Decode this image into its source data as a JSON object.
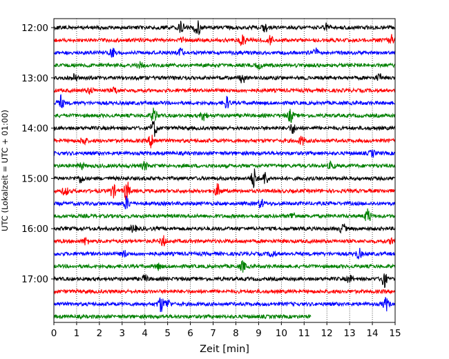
{
  "chart_data": {
    "type": "line",
    "subtype": "helicorder-seismogram",
    "title": "",
    "xlabel": "Zeit  [min]",
    "ylabel": "UTC (Lokalzeit = UTC + 01:00)",
    "xlim": [
      0,
      15
    ],
    "x_ticks": [
      0,
      1,
      2,
      3,
      4,
      5,
      6,
      7,
      8,
      9,
      10,
      11,
      12,
      13,
      14,
      15
    ],
    "x_grid": "vertical-dotted",
    "y_tick_labels": [
      "12:00",
      "13:00",
      "14:00",
      "15:00",
      "16:00",
      "17:00"
    ],
    "trace_colors": [
      "#000000",
      "#ff0000",
      "#0000ff",
      "#008000"
    ],
    "traces": [
      {
        "start": "12:00",
        "end_min": 15,
        "color": "#000000",
        "events": [
          {
            "t": 5.6,
            "amp": 8
          },
          {
            "t": 6.3,
            "amp": 12
          },
          {
            "t": 9.3,
            "amp": 6
          },
          {
            "t": 12.0,
            "amp": 6
          }
        ]
      },
      {
        "start": "12:15",
        "end_min": 15,
        "color": "#ff0000",
        "events": [
          {
            "t": 5.7,
            "amp": 4
          },
          {
            "t": 8.3,
            "amp": 10
          },
          {
            "t": 9.5,
            "amp": 6
          },
          {
            "t": 14.8,
            "amp": 8
          }
        ]
      },
      {
        "start": "12:30",
        "end_min": 15,
        "color": "#0000ff",
        "events": [
          {
            "t": 2.6,
            "amp": 7
          },
          {
            "t": 5.6,
            "amp": 5
          },
          {
            "t": 11.5,
            "amp": 6
          }
        ]
      },
      {
        "start": "12:45",
        "end_min": 15,
        "color": "#008000",
        "events": [
          {
            "t": 3.8,
            "amp": 4
          },
          {
            "t": 9.0,
            "amp": 4
          }
        ]
      },
      {
        "start": "13:00",
        "end_min": 15,
        "color": "#000000",
        "events": [
          {
            "t": 0.9,
            "amp": 5
          },
          {
            "t": 8.3,
            "amp": 8
          },
          {
            "t": 14.3,
            "amp": 5
          }
        ]
      },
      {
        "start": "13:15",
        "end_min": 15,
        "color": "#ff0000",
        "events": [
          {
            "t": 1.6,
            "amp": 4
          },
          {
            "t": 2.7,
            "amp": 4
          }
        ]
      },
      {
        "start": "13:30",
        "end_min": 15,
        "color": "#0000ff",
        "events": [
          {
            "t": 0.3,
            "amp": 10
          },
          {
            "t": 7.6,
            "amp": 8
          }
        ]
      },
      {
        "start": "13:45",
        "end_min": 15,
        "color": "#008000",
        "events": [
          {
            "t": 4.4,
            "amp": 10
          },
          {
            "t": 6.6,
            "amp": 7
          },
          {
            "t": 10.4,
            "amp": 9
          }
        ]
      },
      {
        "start": "14:00",
        "end_min": 15,
        "color": "#000000",
        "events": [
          {
            "t": 4.4,
            "amp": 12
          },
          {
            "t": 10.5,
            "amp": 7
          }
        ]
      },
      {
        "start": "14:15",
        "end_min": 15,
        "color": "#ff0000",
        "events": [
          {
            "t": 1.3,
            "amp": 6
          },
          {
            "t": 4.3,
            "amp": 10
          },
          {
            "t": 10.9,
            "amp": 6
          }
        ]
      },
      {
        "start": "14:30",
        "end_min": 15,
        "color": "#0000ff",
        "events": [
          {
            "t": 14.0,
            "amp": 4
          }
        ]
      },
      {
        "start": "14:45",
        "end_min": 15,
        "color": "#008000",
        "events": [
          {
            "t": 1.2,
            "amp": 4
          },
          {
            "t": 4.0,
            "amp": 5
          },
          {
            "t": 12.2,
            "amp": 5
          }
        ]
      },
      {
        "start": "15:00",
        "end_min": 15,
        "color": "#000000",
        "events": [
          {
            "t": 1.2,
            "amp": 6
          },
          {
            "t": 8.8,
            "amp": 14
          },
          {
            "t": 9.3,
            "amp": 9
          }
        ]
      },
      {
        "start": "15:15",
        "end_min": 15,
        "color": "#ff0000",
        "events": [
          {
            "t": 2.6,
            "amp": 9
          },
          {
            "t": 3.2,
            "amp": 14
          },
          {
            "t": 7.2,
            "amp": 9
          },
          {
            "t": 0.5,
            "amp": 6
          }
        ]
      },
      {
        "start": "15:30",
        "end_min": 15,
        "color": "#0000ff",
        "events": [
          {
            "t": 3.2,
            "amp": 9
          },
          {
            "t": 9.1,
            "amp": 6
          }
        ]
      },
      {
        "start": "15:45",
        "end_min": 15,
        "color": "#008000",
        "events": [
          {
            "t": 10.5,
            "amp": 5
          },
          {
            "t": 13.8,
            "amp": 10
          }
        ]
      },
      {
        "start": "16:00",
        "end_min": 15,
        "color": "#000000",
        "events": [
          {
            "t": 3.5,
            "amp": 5
          },
          {
            "t": 12.7,
            "amp": 7
          }
        ]
      },
      {
        "start": "16:15",
        "end_min": 15,
        "color": "#ff0000",
        "events": [
          {
            "t": 1.4,
            "amp": 5
          },
          {
            "t": 4.8,
            "amp": 7
          },
          {
            "t": 14.9,
            "amp": 6
          }
        ]
      },
      {
        "start": "16:30",
        "end_min": 15,
        "color": "#0000ff",
        "events": [
          {
            "t": 3.1,
            "amp": 4
          },
          {
            "t": 9.6,
            "amp": 5
          },
          {
            "t": 13.4,
            "amp": 7
          }
        ]
      },
      {
        "start": "16:45",
        "end_min": 15,
        "color": "#008000",
        "events": [
          {
            "t": 8.3,
            "amp": 7
          },
          {
            "t": 4.6,
            "amp": 4
          }
        ]
      },
      {
        "start": "17:00",
        "end_min": 15,
        "color": "#000000",
        "events": [
          {
            "t": 4.0,
            "amp": 5
          },
          {
            "t": 13.0,
            "amp": 5
          },
          {
            "t": 14.5,
            "amp": 12
          }
        ]
      },
      {
        "start": "17:15",
        "end_min": 15,
        "color": "#ff0000",
        "events": []
      },
      {
        "start": "17:30",
        "end_min": 15,
        "color": "#0000ff",
        "events": [
          {
            "t": 4.7,
            "amp": 11
          },
          {
            "t": 5.0,
            "amp": 6
          },
          {
            "t": 14.6,
            "amp": 9
          }
        ]
      },
      {
        "start": "17:45",
        "end_min": 11.3,
        "color": "#008000",
        "events": []
      }
    ]
  }
}
